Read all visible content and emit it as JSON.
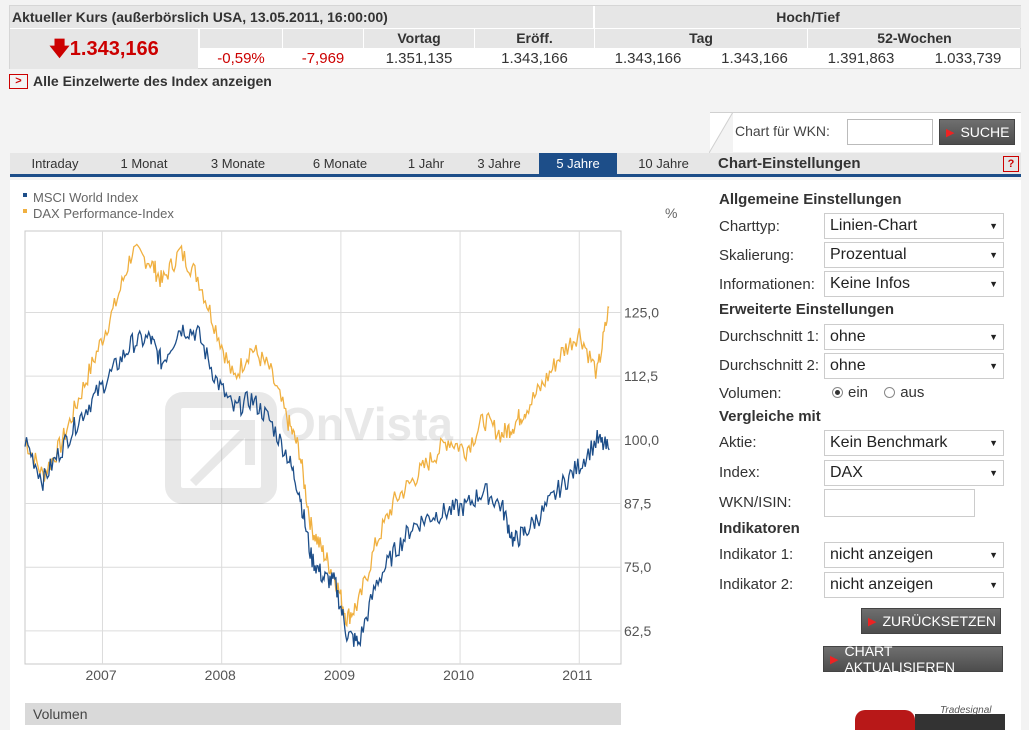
{
  "quote": {
    "title": "Aktueller Kurs (außerbörslich USA, 13.05.2011, 16:00:00)",
    "hochtief_label": "Hoch/Tief",
    "price": "1.343,166",
    "change_pct": "-0,59%",
    "change_abs": "-7,969",
    "cols": {
      "vortag": "Vortag",
      "eroeff": "Eröff.",
      "tag": "Tag",
      "wochen52": "52-Wochen"
    },
    "vals": {
      "vortag": "1.351,135",
      "eroeff": "1.343,166",
      "tag_hoch": "1.343,166",
      "tag_tief": "1.343,166",
      "w52_hoch": "1.391,863",
      "w52_tief": "1.033,739"
    }
  },
  "all_link": "Alle Einzelwerte des Index anzeigen",
  "search": {
    "label": "Chart für WKN:",
    "value": "",
    "button": "SUCHE"
  },
  "tabs": [
    "Intraday",
    "1 Monat",
    "3 Monate",
    "6 Monate",
    "1 Jahr",
    "3 Jahre",
    "5 Jahre",
    "10 Jahre"
  ],
  "active_tab": "5 Jahre",
  "settings": {
    "title": "Chart-Einstellungen",
    "help": "?",
    "general": "Allgemeine Einstellungen",
    "charttyp_label": "Charttyp:",
    "charttyp": "Linien-Chart",
    "skalierung_label": "Skalierung:",
    "skalierung": "Prozentual",
    "info_label": "Informationen:",
    "info": "Keine Infos",
    "extended": "Erweiterte Einstellungen",
    "avg1_label": "Durchschnitt 1:",
    "avg1": "ohne",
    "avg2_label": "Durchschnitt 2:",
    "avg2": "ohne",
    "volumen_label": "Volumen:",
    "vol_on": "ein",
    "vol_off": "aus",
    "compare": "Vergleiche mit",
    "aktie_label": "Aktie:",
    "aktie": "Kein Benchmark",
    "index_label": "Index:",
    "index": "DAX",
    "wkn_label": "WKN/ISIN:",
    "wkn_value": "",
    "indicators": "Indikatoren",
    "ind1_label": "Indikator 1:",
    "ind1": "nicht anzeigen",
    "ind2_label": "Indikator 2:",
    "ind2": "nicht anzeigen",
    "reset_button": "ZURÜCKSETZEN",
    "update_button": "CHART AKTUALISIEREN"
  },
  "volumen_panel": "Volumen",
  "logo_text": "Tradesignal",
  "colors": {
    "msci": "#1d4e89",
    "dax": "#f0b040",
    "accent": "#1d4e89",
    "negative": "#cc0000"
  },
  "chart_data": {
    "type": "line",
    "legend": [
      "MSCI World Index",
      "DAX Performance-Index"
    ],
    "legend_placement": "top-left",
    "unit_label": "%",
    "x_ticks": [
      "2007",
      "2008",
      "2009",
      "2010",
      "2011"
    ],
    "y_ticks": [
      "62,5",
      "75,0",
      "87,5",
      "100,0",
      "112,5",
      "125,0"
    ],
    "ylim": [
      56,
      141
    ],
    "watermark": "OnVista",
    "series": [
      {
        "name": "MSCI World Index",
        "x": [
          2006.4,
          2006.55,
          2006.7,
          2006.85,
          2007.0,
          2007.15,
          2007.3,
          2007.45,
          2007.55,
          2007.7,
          2007.85,
          2008.0,
          2008.15,
          2008.3,
          2008.45,
          2008.6,
          2008.7,
          2008.8,
          2008.9,
          2009.0,
          2009.1,
          2009.2,
          2009.35,
          2009.5,
          2009.65,
          2009.8,
          2009.95,
          2010.1,
          2010.25,
          2010.4,
          2010.5,
          2010.6,
          2010.75,
          2010.9,
          2011.05,
          2011.2,
          2011.3
        ],
        "y": [
          100,
          92,
          98,
          104,
          109,
          114,
          119,
          120,
          115,
          122,
          121,
          112,
          106,
          108,
          104,
          97,
          90,
          77,
          73,
          72,
          62,
          60,
          72,
          78,
          83,
          85,
          86,
          87,
          90,
          87,
          80,
          82,
          86,
          91,
          95,
          100,
          98
        ]
      },
      {
        "name": "DAX Performance-Index",
        "x": [
          2006.4,
          2006.55,
          2006.7,
          2006.85,
          2007.0,
          2007.15,
          2007.3,
          2007.45,
          2007.55,
          2007.7,
          2007.85,
          2008.0,
          2008.15,
          2008.3,
          2008.45,
          2008.6,
          2008.7,
          2008.8,
          2008.9,
          2009.0,
          2009.1,
          2009.2,
          2009.35,
          2009.5,
          2009.65,
          2009.8,
          2009.95,
          2010.1,
          2010.25,
          2010.4,
          2010.5,
          2010.6,
          2010.75,
          2010.9,
          2011.05,
          2011.2,
          2011.3
        ],
        "y": [
          100,
          93,
          99,
          108,
          117,
          126,
          137,
          135,
          131,
          137,
          132,
          122,
          112,
          118,
          114,
          104,
          98,
          83,
          78,
          73,
          65,
          68,
          80,
          88,
          92,
          96,
          100,
          98,
          104,
          101,
          103,
          106,
          111,
          117,
          121,
          113,
          126
        ]
      }
    ]
  }
}
